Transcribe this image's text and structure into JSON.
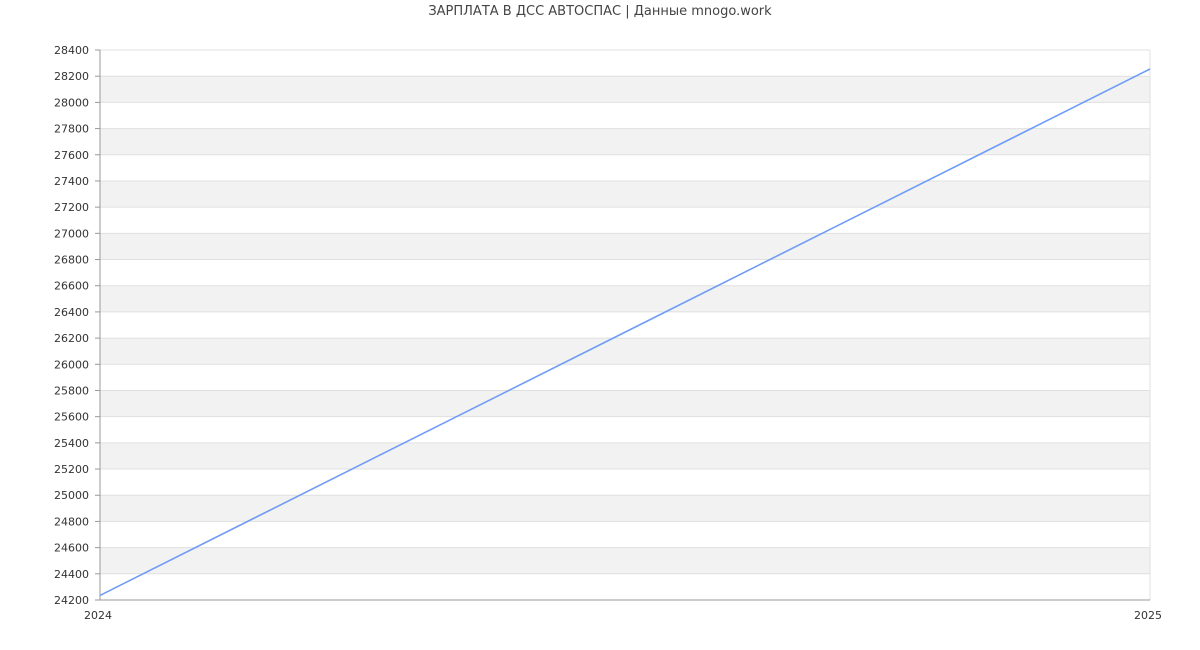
{
  "chart_data": {
    "type": "line",
    "title": "ЗАРПЛАТА В ДСС АВТОСПАС | Данные mnogo.work",
    "x": [
      "2024",
      "2025"
    ],
    "series": [
      {
        "values": [
          24235,
          28255
        ],
        "color": "#6f9cf5"
      }
    ],
    "ylim": [
      24200,
      28400
    ],
    "yticks": [
      24200,
      24400,
      24600,
      24800,
      25000,
      25200,
      25400,
      25600,
      25800,
      26000,
      26200,
      26400,
      26600,
      26800,
      27000,
      27200,
      27400,
      27600,
      27800,
      28000,
      28200,
      28400
    ],
    "xticks": [
      "2024",
      "2025"
    ],
    "grid": true,
    "band_color": "#f2f2f2"
  }
}
